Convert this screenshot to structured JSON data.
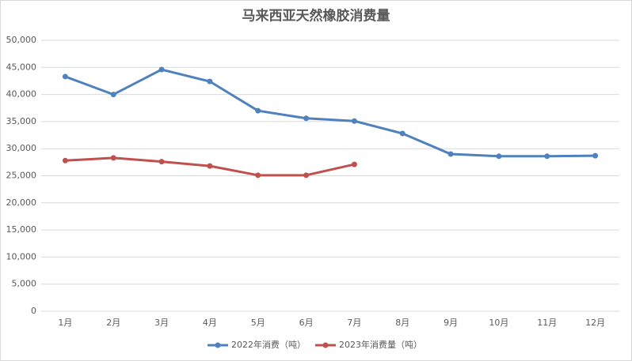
{
  "chart_data": {
    "type": "line",
    "title": "马来西亚天然橡胶消费量",
    "categories": [
      "1月",
      "2月",
      "3月",
      "4月",
      "5月",
      "6月",
      "7月",
      "8月",
      "9月",
      "10月",
      "11月",
      "12月"
    ],
    "series": [
      {
        "name": "2022年消费（吨）",
        "color": "#4f81bd",
        "values": [
          43300,
          40000,
          44600,
          42400,
          37000,
          35600,
          35100,
          32800,
          29000,
          28600,
          28600,
          28700
        ]
      },
      {
        "name": "2023年消费量（吨）",
        "color": "#c0504d",
        "values": [
          27800,
          28300,
          27600,
          26800,
          25100,
          25100,
          27100,
          null,
          null,
          null,
          null,
          null
        ]
      }
    ],
    "ylim": [
      0,
      50000
    ],
    "yticks": [
      0,
      {
        "value": 5000,
        "label": "5,000"
      },
      {
        "value": 10000,
        "label": "10,000"
      },
      {
        "value": 15000,
        "label": "15,000"
      },
      {
        "value": 20000,
        "label": "20,000"
      },
      {
        "value": 25000,
        "label": "25,000"
      },
      {
        "value": 30000,
        "label": "30,000"
      },
      {
        "value": 35000,
        "label": "35,000"
      },
      {
        "value": 40000,
        "label": "40,000"
      },
      {
        "value": 45000,
        "label": "45,000"
      },
      {
        "value": 50000,
        "label": "50,000"
      }
    ],
    "grid": true,
    "legend": "bottom"
  }
}
